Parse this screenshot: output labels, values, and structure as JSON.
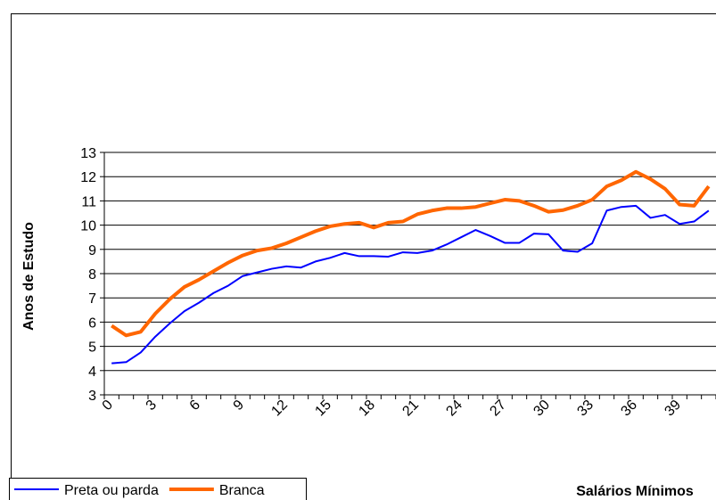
{
  "chart_data": {
    "type": "line",
    "y_label": "Anos de Estudo",
    "x_label": "Salários Mínimos",
    "categories": [
      "0",
      null,
      null,
      "3",
      null,
      null,
      "6",
      null,
      null,
      "9",
      null,
      null,
      "12",
      null,
      null,
      "15",
      null,
      null,
      "18",
      null,
      null,
      "21",
      null,
      null,
      "24",
      null,
      null,
      "27",
      null,
      null,
      "30",
      null,
      null,
      "33",
      null,
      null,
      "36",
      null,
      null,
      "39",
      null,
      null
    ],
    "series": [
      {
        "name": "Preta ou parda",
        "color": "#0000ff",
        "values": [
          4.3,
          4.35,
          4.75,
          5.4,
          5.95,
          6.45,
          6.8,
          7.2,
          7.5,
          7.9,
          8.05,
          8.2,
          8.3,
          8.25,
          8.5,
          8.65,
          8.85,
          8.72,
          8.72,
          8.7,
          8.88,
          8.85,
          8.95,
          9.2,
          9.5,
          9.8,
          9.55,
          9.27,
          9.27,
          9.65,
          9.62,
          8.95,
          8.9,
          9.25,
          10.6,
          10.75,
          10.8,
          10.3,
          10.42,
          10.05,
          10.15,
          10.6
        ]
      },
      {
        "name": "Branca",
        "color": "#ff6600",
        "values": [
          5.85,
          5.45,
          5.6,
          6.35,
          6.95,
          7.45,
          7.75,
          8.1,
          8.45,
          8.75,
          8.95,
          9.05,
          9.25,
          9.5,
          9.75,
          9.95,
          10.05,
          10.1,
          9.9,
          10.1,
          10.15,
          10.45,
          10.6,
          10.7,
          10.7,
          10.75,
          10.9,
          11.05,
          11.0,
          10.8,
          10.55,
          10.62,
          10.8,
          11.05,
          11.6,
          11.85,
          12.2,
          11.9,
          11.5,
          10.85,
          10.8,
          11.6
        ]
      }
    ],
    "ylim": [
      3,
      13
    ],
    "yticks": [
      3,
      4,
      5,
      6,
      7,
      8,
      9,
      10,
      11,
      12,
      13
    ],
    "grid": true,
    "legend": "bottom-left"
  }
}
